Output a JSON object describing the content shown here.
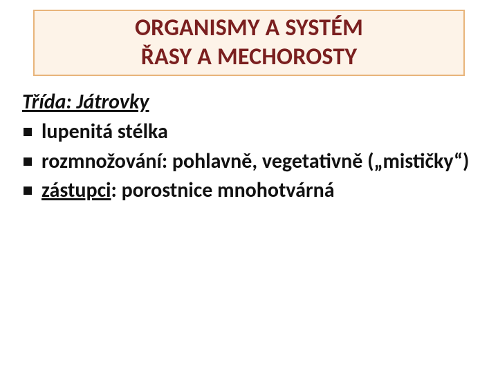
{
  "colors": {
    "title_text": "#7a1f1f",
    "title_bg": "#fdf3e8",
    "title_border": "#e8b47a",
    "body_text": "#111111",
    "bullet_color": "#111111",
    "background": "#ffffff"
  },
  "typography": {
    "title_fontsize_pt": 26,
    "body_fontsize_pt": 22,
    "font_family": "Calibri"
  },
  "title": {
    "line1": "ORGANISMY A SYSTÉM",
    "line2": "ŘASY A MECHOROSTY"
  },
  "heading": "Třída: Játrovky",
  "bullets": [
    {
      "text": " lupenitá stélka"
    },
    {
      "text": "rozmnožování: pohlavně, vegetativně („mističky“)"
    },
    {
      "prefix": "zástupci",
      "suffix": ": porostnice mnohotvárná",
      "underline_prefix": true
    }
  ]
}
